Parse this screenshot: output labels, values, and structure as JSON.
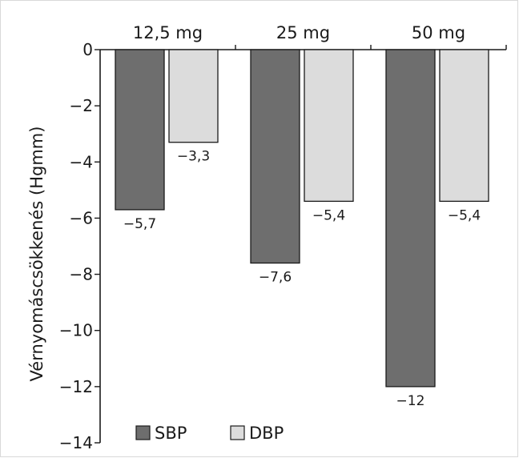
{
  "chart_data": {
    "type": "bar",
    "categories": [
      "12,5 mg",
      "25 mg",
      "50 mg"
    ],
    "series": [
      {
        "name": "SBP",
        "values": [
          -5.7,
          -7.6,
          -12
        ],
        "labels": [
          "−5,7",
          "−7,6",
          "−12"
        ],
        "color": "#6e6e6e"
      },
      {
        "name": "DBP",
        "values": [
          -3.3,
          -5.4,
          -5.4
        ],
        "labels": [
          "−3,3",
          "−5,4",
          "−5,4"
        ],
        "color": "#dcdcdc"
      }
    ],
    "ylabel": "Vérnyomáscsökkenés (Hgmm)",
    "xlabel": "",
    "ylim": [
      -14,
      0
    ],
    "yticks": [
      0,
      -2,
      -4,
      -6,
      -8,
      -10,
      -12,
      -14
    ],
    "ytick_labels": [
      "0",
      "−2",
      "−4",
      "−6",
      "−8",
      "−10",
      "−12",
      "−14"
    ],
    "x_axis_position": "top",
    "legend_position": "bottom-left",
    "grid": false
  }
}
